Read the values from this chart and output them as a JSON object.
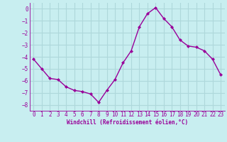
{
  "x": [
    0,
    1,
    2,
    3,
    4,
    5,
    6,
    7,
    8,
    9,
    10,
    11,
    12,
    13,
    14,
    15,
    16,
    17,
    18,
    19,
    20,
    21,
    22,
    23
  ],
  "y": [
    -4.2,
    -5.0,
    -5.8,
    -5.9,
    -6.5,
    -6.8,
    -6.9,
    -7.1,
    -7.8,
    -6.8,
    -5.9,
    -4.5,
    -3.5,
    -1.5,
    -0.4,
    0.1,
    -0.8,
    -1.5,
    -2.6,
    -3.1,
    -3.2,
    -3.5,
    -4.2,
    -5.5
  ],
  "line_color": "#990099",
  "marker": "D",
  "marker_size": 2,
  "bg_color": "#c8eef0",
  "grid_color": "#aed8db",
  "xlabel": "Windchill (Refroidissement éolien,°C)",
  "xlabel_color": "#990099",
  "tick_color": "#990099",
  "ylim": [
    -8.5,
    0.5
  ],
  "xlim": [
    -0.5,
    23.5
  ],
  "yticks": [
    0,
    -1,
    -2,
    -3,
    -4,
    -5,
    -6,
    -7,
    -8
  ],
  "xticks": [
    0,
    1,
    2,
    3,
    4,
    5,
    6,
    7,
    8,
    9,
    10,
    11,
    12,
    13,
    14,
    15,
    16,
    17,
    18,
    19,
    20,
    21,
    22,
    23
  ],
  "font_family": "monospace",
  "tick_fontsize": 5.5,
  "xlabel_fontsize": 5.5,
  "linewidth": 1.0
}
